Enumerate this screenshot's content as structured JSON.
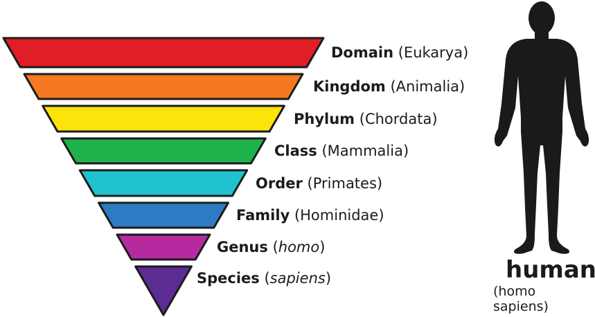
{
  "ranks": [
    {
      "name": "Domain",
      "value": "Eukarya",
      "italic": false,
      "color": "#e01e25"
    },
    {
      "name": "Kingdom",
      "value": "Animalia",
      "italic": false,
      "color": "#f47920"
    },
    {
      "name": "Phylum",
      "value": "Chordata",
      "italic": false,
      "color": "#fce309"
    },
    {
      "name": "Class",
      "value": "Mammalia",
      "italic": false,
      "color": "#1eb34a"
    },
    {
      "name": "Order",
      "value": "Primates",
      "italic": false,
      "color": "#1fc3cf"
    },
    {
      "name": "Family",
      "value": "Hominidae",
      "italic": false,
      "color": "#2f7ac4"
    },
    {
      "name": "Genus",
      "value": "homo",
      "italic": true,
      "color": "#b62a9f"
    },
    {
      "name": "Species",
      "value": "sapiens",
      "italic": true,
      "color": "#5c2c92"
    }
  ],
  "human": {
    "name": "human",
    "scientific": "(homo sapiens)",
    "silhouette_color": "#1a1a1a"
  }
}
